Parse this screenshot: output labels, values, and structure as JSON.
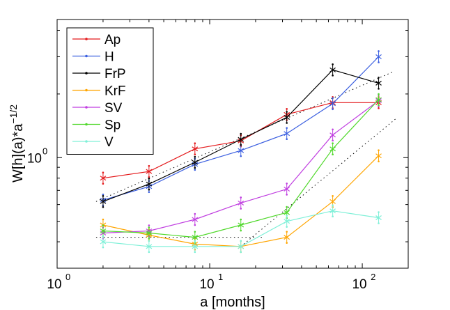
{
  "chart_data": {
    "type": "line",
    "xscale": "log",
    "yscale": "log",
    "xlabel": "a [months]",
    "ylabel": "W[h](a)*a^-1/2",
    "xlim": [
      1,
      200
    ],
    "ylim": [
      0.3,
      4.5
    ],
    "xticks": [
      {
        "value": 1,
        "base": "10",
        "exp": "0"
      },
      {
        "value": 10,
        "base": "10",
        "exp": "1"
      },
      {
        "value": 100,
        "base": "10",
        "exp": "2"
      }
    ],
    "yticks": [
      {
        "value": 1,
        "label": "10",
        "exp": "0"
      }
    ],
    "legend_position": "top-left",
    "x": [
      2,
      4,
      8,
      16,
      32,
      64,
      128
    ],
    "series": [
      {
        "name": "Ap",
        "color": "#e41a1c",
        "values": [
          0.8,
          0.86,
          1.1,
          1.2,
          1.6,
          1.82,
          1.82
        ]
      },
      {
        "name": "H",
        "color": "#3b5fe0",
        "values": [
          0.63,
          0.73,
          0.93,
          1.08,
          1.3,
          1.8,
          3.0
        ]
      },
      {
        "name": "FrP",
        "color": "#000000",
        "values": [
          0.62,
          0.75,
          0.95,
          1.22,
          1.55,
          2.6,
          2.25
        ]
      },
      {
        "name": "KrF",
        "color": "#ffa500",
        "values": [
          0.48,
          0.43,
          0.39,
          0.38,
          0.42,
          0.62,
          1.02
        ]
      },
      {
        "name": "SV",
        "color": "#c03ee0",
        "values": [
          0.44,
          0.45,
          0.51,
          0.61,
          0.71,
          1.28,
          1.86
        ]
      },
      {
        "name": "Sp",
        "color": "#4fd82a",
        "values": [
          0.45,
          0.44,
          0.42,
          0.48,
          0.55,
          1.1,
          1.88
        ]
      },
      {
        "name": "V",
        "color": "#7ff0d8",
        "values": [
          0.4,
          0.38,
          0.38,
          0.38,
          0.5,
          0.56,
          0.52
        ]
      }
    ],
    "reference_lines": [
      {
        "name": "ref-1",
        "x": [
          1.8,
          160
        ],
        "y": [
          0.62,
          2.55
        ]
      },
      {
        "name": "ref-2",
        "x": [
          1.8,
          22
        ],
        "y": [
          0.42,
          0.42
        ]
      },
      {
        "name": "ref-3",
        "x": [
          16,
          170
        ],
        "y": [
          0.38,
          1.55
        ]
      }
    ]
  }
}
